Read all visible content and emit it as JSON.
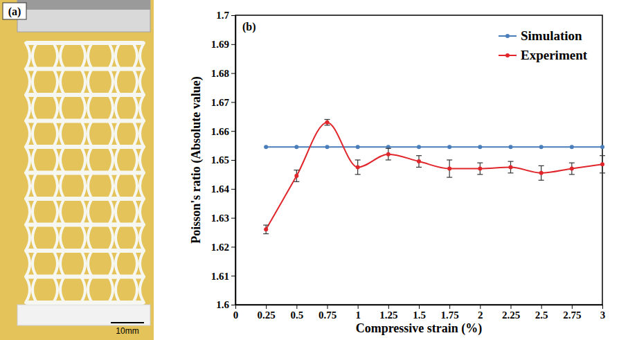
{
  "image_panel": {
    "label": "(a)",
    "scale_bar": "10mm"
  },
  "chart_data": {
    "type": "line",
    "panel_label": "(b)",
    "x_label": "Compressive strain (%)",
    "y_label": "Poisson's ratio (Absolute value)",
    "x": [
      0.25,
      0.5,
      0.75,
      1,
      1.25,
      1.5,
      1.75,
      2,
      2.25,
      2.5,
      2.75,
      3
    ],
    "series": [
      {
        "name": "Simulation",
        "color": "#4a7ebb",
        "marker": "circle",
        "line_style": "solid",
        "values": [
          1.6545,
          1.6545,
          1.6545,
          1.6545,
          1.6545,
          1.6545,
          1.6545,
          1.6545,
          1.6545,
          1.6545,
          1.6545,
          1.6545
        ]
      },
      {
        "name": "Experiment",
        "color": "#e0262b",
        "marker": "circle",
        "line_style": "smooth",
        "values": [
          1.626,
          1.6445,
          1.663,
          1.6475,
          1.652,
          1.6495,
          1.647,
          1.647,
          1.6475,
          1.6455,
          1.647,
          1.6485
        ],
        "errors": [
          0.0015,
          0.002,
          0.001,
          0.0025,
          0.002,
          0.002,
          0.003,
          0.002,
          0.002,
          0.0025,
          0.002,
          0.003
        ]
      }
    ],
    "xlim": [
      0,
      3
    ],
    "xticks": [
      0,
      0.25,
      0.5,
      0.75,
      1,
      1.25,
      1.5,
      1.75,
      2,
      2.25,
      2.5,
      2.75,
      3
    ],
    "ylim": [
      1.6,
      1.7
    ],
    "yticks": [
      1.6,
      1.61,
      1.62,
      1.63,
      1.64,
      1.65,
      1.66,
      1.67,
      1.68,
      1.69,
      1.7
    ],
    "legend": "top-right",
    "grid": false
  }
}
